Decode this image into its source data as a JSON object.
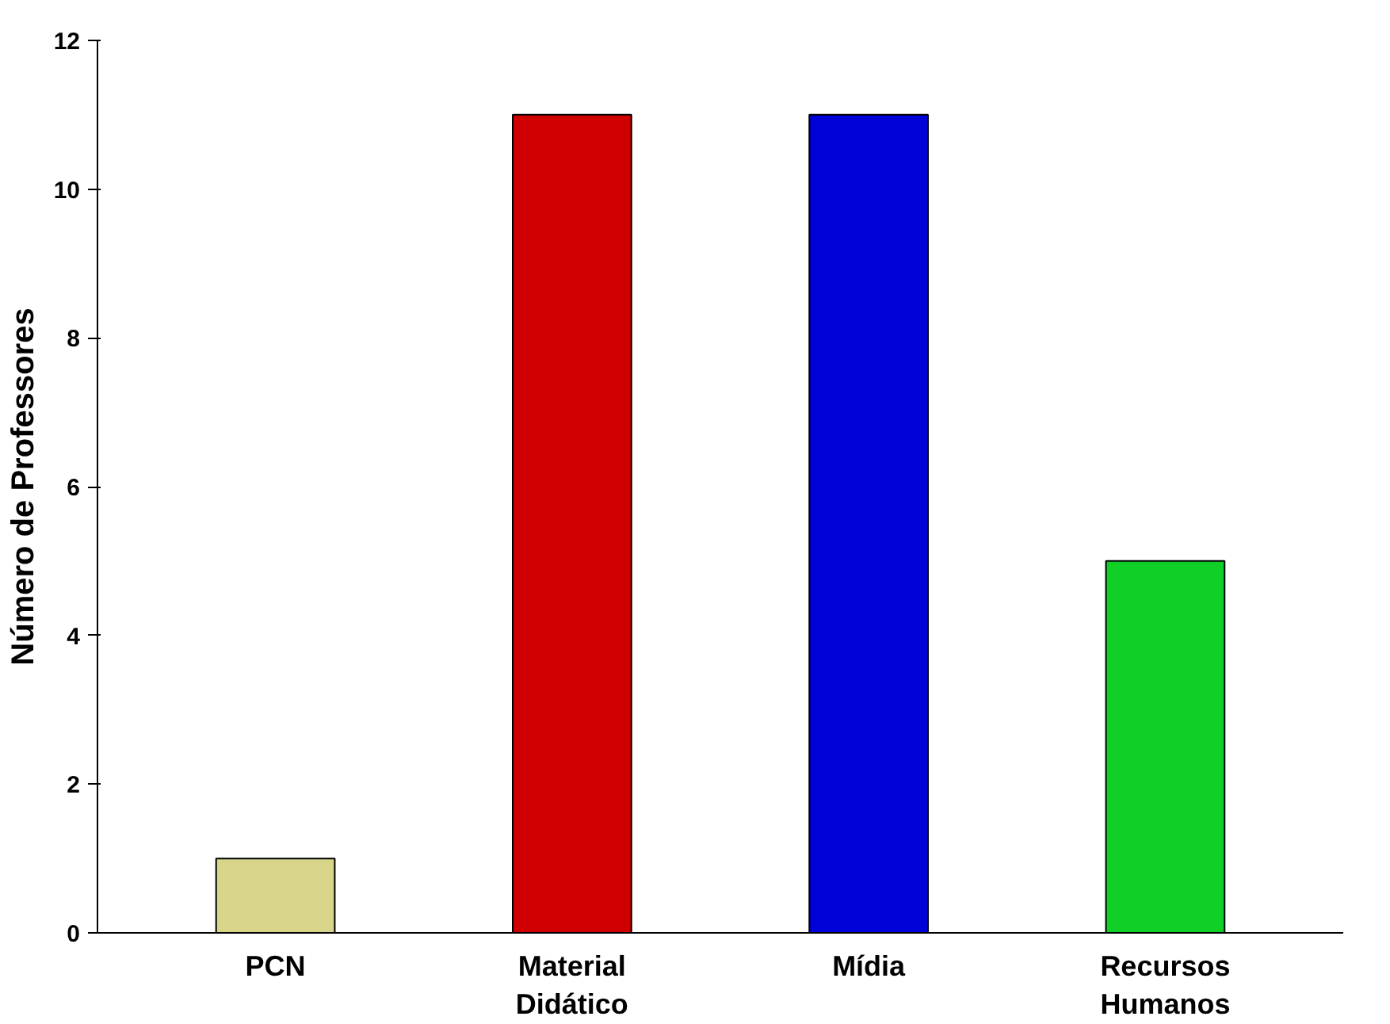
{
  "chart_data": {
    "type": "bar",
    "ylabel": "Número de Professores",
    "categories": [
      "PCN",
      "Material Didático",
      "Mídia",
      "Recursos Humanos"
    ],
    "values": [
      1,
      11,
      11,
      5
    ],
    "colors": [
      "#d8d48a",
      "#d00000",
      "#0000d8",
      "#10d028"
    ],
    "ylim": [
      0,
      12
    ],
    "yticks": [
      0,
      2,
      4,
      6,
      8,
      10,
      12
    ],
    "grid": false
  }
}
